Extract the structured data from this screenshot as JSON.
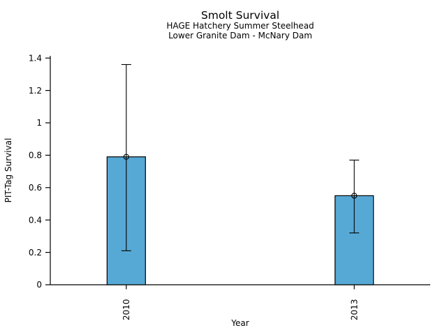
{
  "figure": {
    "background": "#ffffff"
  },
  "chart_data": {
    "type": "bar",
    "title": "Smolt Survival",
    "subtitle1": "HAGE Hatchery Summer Steelhead",
    "subtitle2": "Lower Granite Dam - McNary Dam",
    "xlabel": "Year",
    "ylabel": "PIT-Tag Survival",
    "categories": [
      "2010",
      "2013"
    ],
    "values": [
      0.79,
      0.55
    ],
    "error_low": [
      0.21,
      0.32
    ],
    "error_high": [
      1.36,
      0.77
    ],
    "ylim": [
      0,
      1.4
    ],
    "yticks": [
      0,
      0.2,
      0.4,
      0.6,
      0.8,
      1,
      1.2,
      1.4
    ],
    "ytick_labels": [
      "0",
      "0.2",
      "0.4",
      "0.6",
      "0.8",
      "1",
      "1.2",
      "1.4"
    ],
    "xtick_label_rotation": -90,
    "marker": "open-circle",
    "grid": false,
    "legend": "none",
    "bar_color": "#57A9D5",
    "bar_edge_color": "#000000",
    "axis_color": "#000000",
    "text_color": "#000000"
  }
}
